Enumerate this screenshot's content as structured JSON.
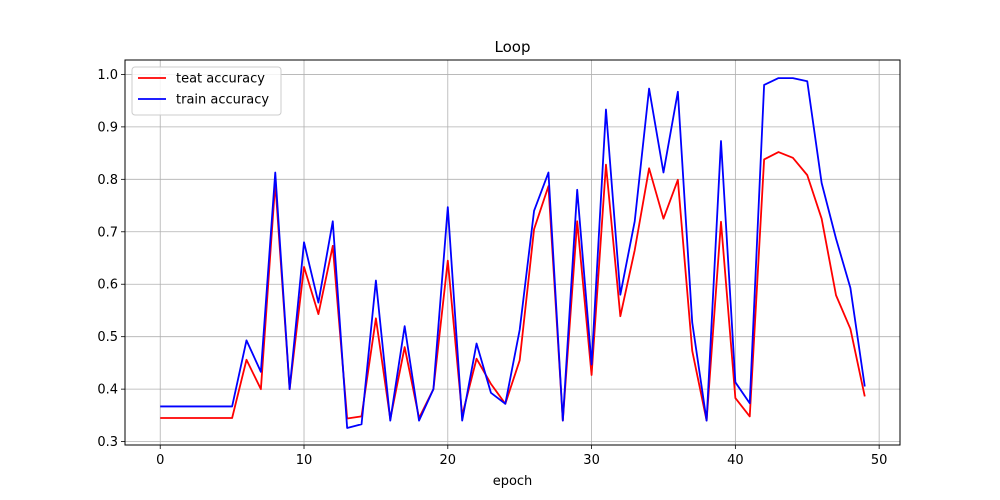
{
  "chart_data": {
    "type": "line",
    "title": "Loop",
    "xlabel": "epoch",
    "ylabel": "",
    "xlim": [
      -2.45,
      51.45
    ],
    "ylim": [
      0.2935,
      1.0275
    ],
    "xticks": [
      0,
      10,
      20,
      30,
      40,
      50
    ],
    "yticks": [
      0.3,
      0.4,
      0.5,
      0.6,
      0.7,
      0.8,
      0.9,
      1.0
    ],
    "xtick_labels": [
      "0",
      "10",
      "20",
      "30",
      "40",
      "50"
    ],
    "ytick_labels": [
      "0.3",
      "0.4",
      "0.5",
      "0.6",
      "0.7",
      "0.8",
      "0.9",
      "1.0"
    ],
    "grid": true,
    "legend_position": "top-left",
    "x": [
      0,
      1,
      2,
      3,
      4,
      5,
      6,
      7,
      8,
      9,
      10,
      11,
      12,
      13,
      14,
      15,
      16,
      17,
      18,
      19,
      20,
      21,
      22,
      23,
      24,
      25,
      26,
      27,
      28,
      29,
      30,
      31,
      32,
      33,
      34,
      35,
      36,
      37,
      38,
      39,
      40,
      41,
      42,
      43,
      44,
      45,
      46,
      47,
      48,
      49
    ],
    "series": [
      {
        "name": "teat accuracy",
        "color": "#ff0000",
        "values": [
          0.345,
          0.345,
          0.345,
          0.345,
          0.345,
          0.345,
          0.456,
          0.4,
          0.793,
          0.4,
          0.633,
          0.543,
          0.673,
          0.344,
          0.348,
          0.535,
          0.343,
          0.48,
          0.345,
          0.4,
          0.645,
          0.35,
          0.458,
          0.41,
          0.372,
          0.455,
          0.705,
          0.787,
          0.34,
          0.72,
          0.427,
          0.828,
          0.539,
          0.665,
          0.821,
          0.725,
          0.799,
          0.473,
          0.34,
          0.719,
          0.383,
          0.348,
          0.838,
          0.852,
          0.841,
          0.808,
          0.725,
          0.579,
          0.515,
          0.386
        ]
      },
      {
        "name": "train accuracy",
        "color": "#0000ff",
        "values": [
          0.367,
          0.367,
          0.367,
          0.367,
          0.367,
          0.367,
          0.493,
          0.433,
          0.813,
          0.4,
          0.68,
          0.565,
          0.72,
          0.326,
          0.333,
          0.607,
          0.34,
          0.52,
          0.34,
          0.4,
          0.747,
          0.34,
          0.487,
          0.393,
          0.372,
          0.513,
          0.74,
          0.813,
          0.34,
          0.78,
          0.447,
          0.933,
          0.58,
          0.72,
          0.973,
          0.813,
          0.967,
          0.527,
          0.34,
          0.873,
          0.413,
          0.373,
          0.98,
          0.993,
          0.993,
          0.987,
          0.793,
          0.687,
          0.593,
          0.405
        ]
      }
    ]
  }
}
